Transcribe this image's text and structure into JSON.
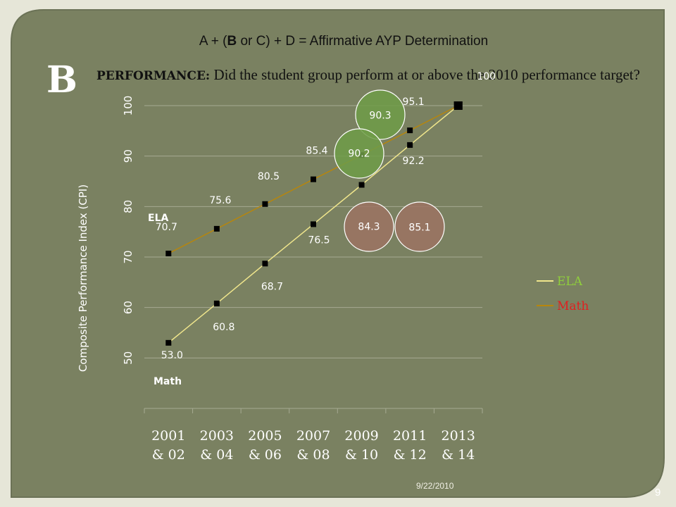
{
  "slide": {
    "formula_prefix": "A + (",
    "formula_b": "B",
    "formula_suffix": " or C) + D = Affirmative AYP Determination",
    "section_letter": "B",
    "question_bold": "PERFORMANCE:",
    "question_text": " Did the student group perform at or above the 2010 performance target?",
    "date": "9/22/2010",
    "page_number": "9"
  },
  "colors": {
    "background": "#7a8161",
    "ela_line": "#b8860b",
    "math_line": "#f0e68c",
    "ela_label": "#8fce3c",
    "math_label": "#e02020",
    "target_green": "#6e9c48",
    "target_brown": "#9c7363"
  },
  "chart_data": {
    "type": "line",
    "ylabel": "Composite Performance Index (CPI)",
    "xlabel": "",
    "ylim": [
      40,
      100
    ],
    "yticks": [
      50,
      60,
      70,
      80,
      90,
      100
    ],
    "categories": [
      "2001 & 02",
      "2003 & 04",
      "2005 & 06",
      "2007 & 08",
      "2009 & 10",
      "2011 & 12",
      "2013 & 14"
    ],
    "category_lines": [
      [
        "2001",
        "& 02"
      ],
      [
        "2003",
        "& 04"
      ],
      [
        "2005",
        "& 06"
      ],
      [
        "2007",
        "& 08"
      ],
      [
        "2009",
        "& 10"
      ],
      [
        "2011",
        "& 12"
      ],
      [
        "2013",
        "& 14"
      ]
    ],
    "series": [
      {
        "name": "ELA",
        "points": [
          70.7,
          75.6,
          80.5,
          85.4,
          90.2,
          95.1,
          100
        ],
        "labels": [
          "70.7",
          "75.6",
          "80.5",
          "85.4",
          "",
          "95.1",
          "100"
        ]
      },
      {
        "name": "Math",
        "points": [
          53.0,
          60.8,
          68.7,
          76.5,
          84.3,
          92.2,
          100
        ],
        "labels": [
          "53.0",
          "60.8",
          "68.7",
          "76.5",
          "",
          "92.2",
          ""
        ]
      }
    ],
    "targets": [
      {
        "series": "ELA",
        "category": "2009 & 10",
        "value": 90.3,
        "label": "90.3"
      },
      {
        "series": "ELA",
        "category": "2009 & 10",
        "value": 90.2,
        "label": "90.2"
      },
      {
        "series": "Math",
        "category": "2009 & 10",
        "value": 84.3,
        "label": "84.3"
      },
      {
        "series": "Math",
        "category": "2009 & 10",
        "value": 85.1,
        "label": "85.1"
      }
    ],
    "inline_series_labels": {
      "ela": "ELA",
      "math": "Math"
    },
    "legend": {
      "position": "right",
      "items": [
        "ELA",
        "Math"
      ]
    }
  }
}
